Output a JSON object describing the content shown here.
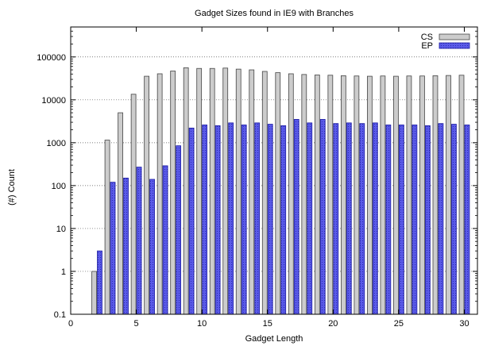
{
  "chart_data": {
    "type": "bar",
    "title": "Gadget Sizes found in IE9 with Branches",
    "xlabel": "Gadget Length",
    "ylabel": "(#) Count",
    "xlim": [
      0,
      31
    ],
    "ylim": [
      0.1,
      500000
    ],
    "yscale": "log",
    "grid": "horizontal-dotted",
    "legend_position": "top-right",
    "x_ticks": [
      0,
      5,
      10,
      15,
      20,
      25,
      30
    ],
    "y_ticks": [
      0.1,
      1,
      10,
      100,
      1000,
      10000,
      100000
    ],
    "y_tick_labels": [
      "0.1",
      "1",
      "10",
      "100",
      "1000",
      "10000",
      "100000"
    ],
    "x": [
      2,
      3,
      4,
      5,
      6,
      7,
      8,
      9,
      10,
      11,
      12,
      13,
      14,
      15,
      16,
      17,
      18,
      19,
      20,
      21,
      22,
      23,
      24,
      25,
      26,
      27,
      28,
      29,
      30
    ],
    "series": [
      {
        "name": "CS",
        "color": "#cccccc",
        "values": [
          1,
          1150,
          5000,
          13500,
          35500,
          40500,
          47000,
          56000,
          54000,
          54000,
          55000,
          52000,
          50000,
          46000,
          43000,
          40500,
          39000,
          38000,
          37500,
          36500,
          36000,
          35500,
          36000,
          35500,
          36000,
          36000,
          36500,
          37000,
          37500
        ]
      },
      {
        "name": "EP",
        "color": "#5a5ae8",
        "values": [
          3,
          120,
          150,
          270,
          140,
          290,
          850,
          2200,
          2600,
          2500,
          2900,
          2600,
          2900,
          2700,
          2500,
          3500,
          2900,
          3500,
          2800,
          2900,
          2800,
          2900,
          2600,
          2600,
          2600,
          2500,
          2800,
          2700,
          2600
        ]
      }
    ]
  }
}
